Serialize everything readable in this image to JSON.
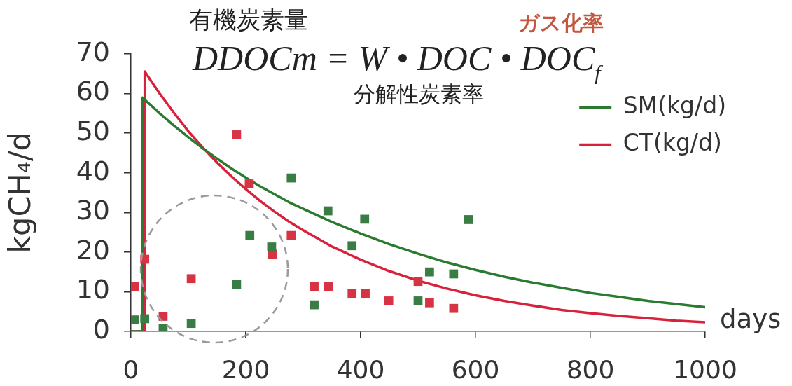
{
  "chart_data": {
    "type": "line",
    "xlabel": "days",
    "ylabel": "kgCH₄/d",
    "annotations": [
      "有機炭素量",
      "ガス化率",
      "DDOCm = W • DOC • DOC$_{f}$",
      "分解性炭素率"
    ],
    "xlim": [
      0,
      1000
    ],
    "xticks": [
      0,
      200,
      400,
      600,
      800,
      1000
    ],
    "ylim": [
      0,
      70
    ],
    "yticks": [
      0,
      10,
      20,
      30,
      40,
      50,
      60,
      70
    ],
    "legend": "top right",
    "series": [
      {
        "name": "SM(kg/d)",
        "marker": "none",
        "color": "#2a7b2f",
        "x": [
          0,
          20,
          20,
          35,
          50,
          75,
          100,
          125,
          150,
          175,
          200,
          225,
          250,
          275,
          300,
          350,
          400,
          450,
          500,
          550,
          600,
          650,
          700,
          750,
          800,
          850,
          900,
          950,
          1000
        ],
        "values": [
          0,
          0,
          59,
          57.0,
          55.0,
          51.9,
          49.0,
          46.2,
          43.6,
          41.1,
          38.8,
          36.6,
          34.6,
          32.6,
          30.9,
          27.6,
          24.7,
          22.0,
          19.6,
          17.4,
          15.5,
          13.8,
          12.3,
          11.0,
          9.7,
          8.7,
          7.7,
          6.9,
          6.1
        ]
      },
      {
        "name": "CT(kg/d)",
        "marker": "none",
        "color": "#d8213a",
        "x": [
          0,
          24,
          24,
          35,
          50,
          75,
          100,
          125,
          150,
          175,
          200,
          225,
          250,
          275,
          300,
          350,
          400,
          450,
          500,
          550,
          600,
          650,
          700,
          750,
          800,
          850,
          900,
          950,
          1000
        ],
        "values": [
          0,
          0,
          65.6,
          63.2,
          60.0,
          55.1,
          50.5,
          46.4,
          42.6,
          39.1,
          35.9,
          32.9,
          30.2,
          27.7,
          25.5,
          21.4,
          18.1,
          15.2,
          12.8,
          10.8,
          9.1,
          7.7,
          6.5,
          5.4,
          4.6,
          3.9,
          3.3,
          2.7,
          2.3
        ]
      },
      {
        "type": "scatter",
        "marker": "square",
        "color": "#3a7d44",
        "x": [
          6,
          24,
          56,
          105,
          184,
          207,
          245,
          279,
          319,
          343,
          385,
          407,
          500,
          520,
          562,
          588
        ],
        "values": [
          2.9,
          3.2,
          0.8,
          2.0,
          11.9,
          24.2,
          21.3,
          38.7,
          6.7,
          30.4,
          21.6,
          28.3,
          7.7,
          15.0,
          14.5,
          28.2
        ]
      },
      {
        "type": "scatter",
        "marker": "square",
        "color": "#d63445",
        "x": [
          6,
          24,
          56,
          105,
          184,
          206,
          246,
          279,
          319,
          344,
          385,
          408,
          449,
          500,
          520,
          562
        ],
        "values": [
          11.3,
          18.2,
          3.8,
          13.3,
          49.6,
          37.2,
          19.5,
          24.2,
          11.3,
          11.3,
          9.5,
          9.5,
          7.7,
          12.6,
          7.2,
          5.8
        ]
      }
    ]
  }
}
